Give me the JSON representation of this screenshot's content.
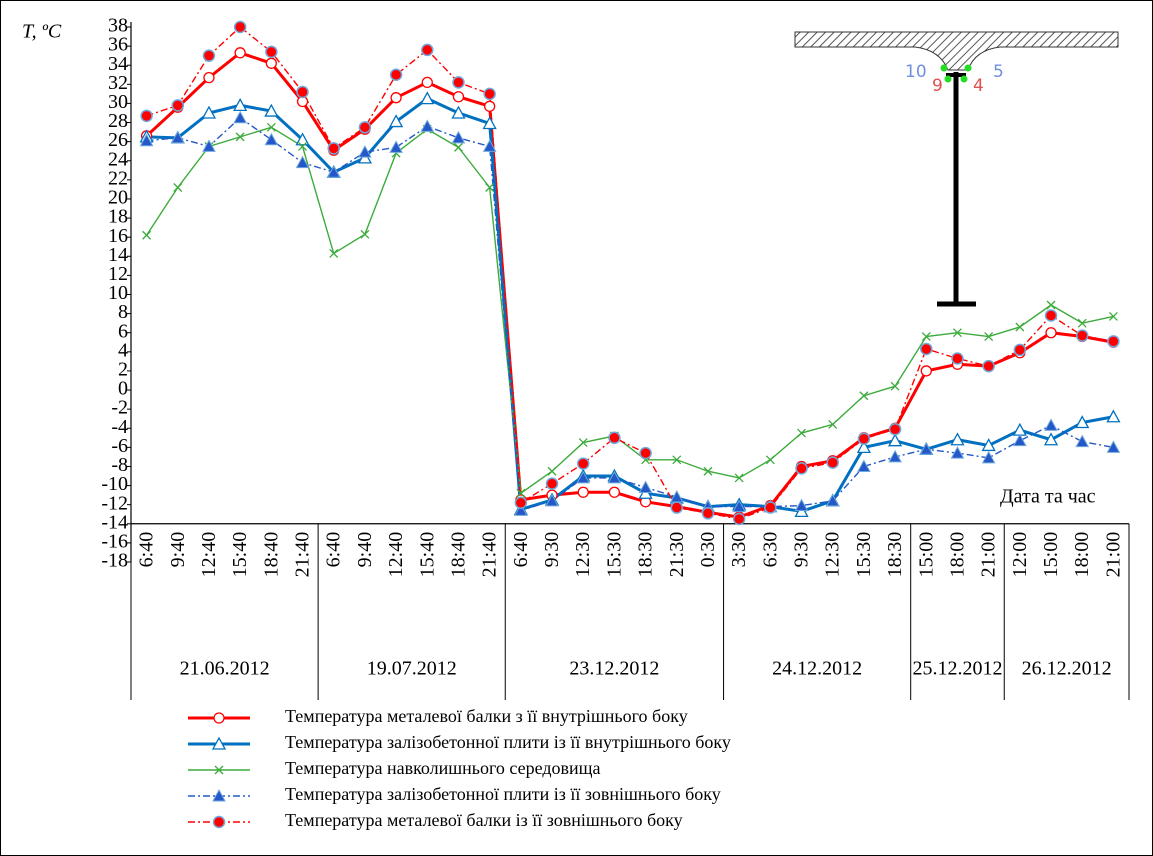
{
  "chart_data": {
    "type": "line",
    "y_axis_label": "T, ºC",
    "x_axis_label": "Дата та час",
    "ylim": [
      -18,
      38
    ],
    "yticks": [
      -18,
      -16,
      -14,
      -12,
      -10,
      -8,
      -6,
      -4,
      -2,
      0,
      2,
      4,
      6,
      8,
      10,
      12,
      14,
      16,
      18,
      20,
      22,
      24,
      26,
      28,
      30,
      32,
      34,
      36,
      38
    ],
    "x_axis_crosses": -14,
    "groups": [
      {
        "label": "21.06.2012",
        "categories": [
          "6:40",
          "9:40",
          "12:40",
          "15:40",
          "18:40",
          "21:40"
        ]
      },
      {
        "label": "19.07.2012",
        "categories": [
          "6:40",
          "9:40",
          "12:40",
          "15:40",
          "18:40",
          "21:40"
        ]
      },
      {
        "label": "23.12.2012",
        "categories": [
          "6:40",
          "9:30",
          "12:30",
          "15:30",
          "18:30",
          "21:30",
          "0:30"
        ]
      },
      {
        "label": "24.12.2012",
        "categories": [
          "3:30",
          "6:30",
          "9:30",
          "12:30",
          "15:30",
          "18:30"
        ]
      },
      {
        "label": "25.12.2012",
        "categories": [
          "15:00",
          "18:00",
          "21:00"
        ]
      },
      {
        "label": "26.12.2012",
        "categories": [
          "12:00",
          "15:00",
          "18:00",
          "21:00"
        ]
      }
    ],
    "series": [
      {
        "name": "Температура металевої балки з її внутрішнього боку",
        "color": "#ff0000",
        "marker": "circle-open",
        "dash": "solid",
        "values": [
          26.6,
          29.6,
          32.7,
          35.3,
          34.2,
          30.2,
          25.1,
          27.3,
          30.6,
          32.2,
          30.7,
          29.7,
          -11.5,
          -11.0,
          -10.7,
          -10.7,
          -11.7,
          -12.2,
          -12.8,
          -13.3,
          -12.1,
          -8.0,
          -7.4,
          -5.0,
          -4.0,
          2.0,
          2.7,
          2.5,
          3.9,
          6.0,
          5.6,
          5.0
        ]
      },
      {
        "name": "Температура залізобетонної плити із її внутрішнього боку",
        "color": "#0070c0",
        "marker": "triangle-open",
        "dash": "solid",
        "values": [
          26.5,
          26.4,
          29.0,
          29.8,
          29.2,
          26.2,
          22.8,
          24.3,
          28.1,
          30.5,
          29.0,
          27.9,
          -12.5,
          -11.5,
          -9.0,
          -9.0,
          -10.8,
          -11.3,
          -12.2,
          -12.0,
          -12.2,
          -12.7,
          -11.6,
          -6.0,
          -5.3,
          -6.2,
          -5.2,
          -5.8,
          -4.2,
          -5.2,
          -3.4,
          -2.8
        ]
      },
      {
        "name": "Температура навколишнього середовища",
        "color": "#3cab3c",
        "marker": "x",
        "dash": "solid",
        "values": [
          16.2,
          21.2,
          25.5,
          26.5,
          27.5,
          25.5,
          14.3,
          16.3,
          24.8,
          27.3,
          25.4,
          21.2,
          -10.8,
          -8.5,
          -5.5,
          -4.8,
          -7.3,
          -7.3,
          -8.5,
          -9.2,
          -7.3,
          -4.5,
          -3.6,
          -0.6,
          0.4,
          5.6,
          6.0,
          5.6,
          6.6,
          8.9,
          7.0,
          7.7
        ]
      },
      {
        "name": "Температура залізобетонної плити із її зовнішнього боку",
        "color": "#2458c8",
        "marker": "triangle-filled",
        "dash": "dashdot",
        "values": [
          26.1,
          26.4,
          25.5,
          28.5,
          26.2,
          23.8,
          22.8,
          24.9,
          25.4,
          27.6,
          26.4,
          25.5,
          -12.6,
          -11.6,
          -9.2,
          -9.2,
          -10.2,
          -11.2,
          -12.2,
          -12.2,
          -12.2,
          -12.1,
          -11.6,
          -8.0,
          -7.0,
          -6.2,
          -6.6,
          -7.1,
          -5.3,
          -3.7,
          -5.4,
          -6.0
        ]
      },
      {
        "name": "Температура металевої балки із її зовнішнього боку",
        "color": "#ff0000",
        "marker": "circle-filled",
        "dash": "dashdot",
        "values": [
          28.7,
          29.8,
          35.0,
          38.0,
          35.4,
          31.2,
          25.3,
          27.5,
          33.0,
          35.6,
          32.2,
          31.0,
          -11.8,
          -9.8,
          -7.7,
          -5.0,
          -6.6,
          -12.3,
          -12.9,
          -13.5,
          -12.3,
          -8.2,
          -7.6,
          -5.1,
          -4.1,
          4.3,
          3.3,
          2.5,
          4.2,
          7.8,
          5.7,
          5.1
        ]
      }
    ],
    "annotations": [
      "10",
      "9",
      "4",
      "5"
    ]
  }
}
